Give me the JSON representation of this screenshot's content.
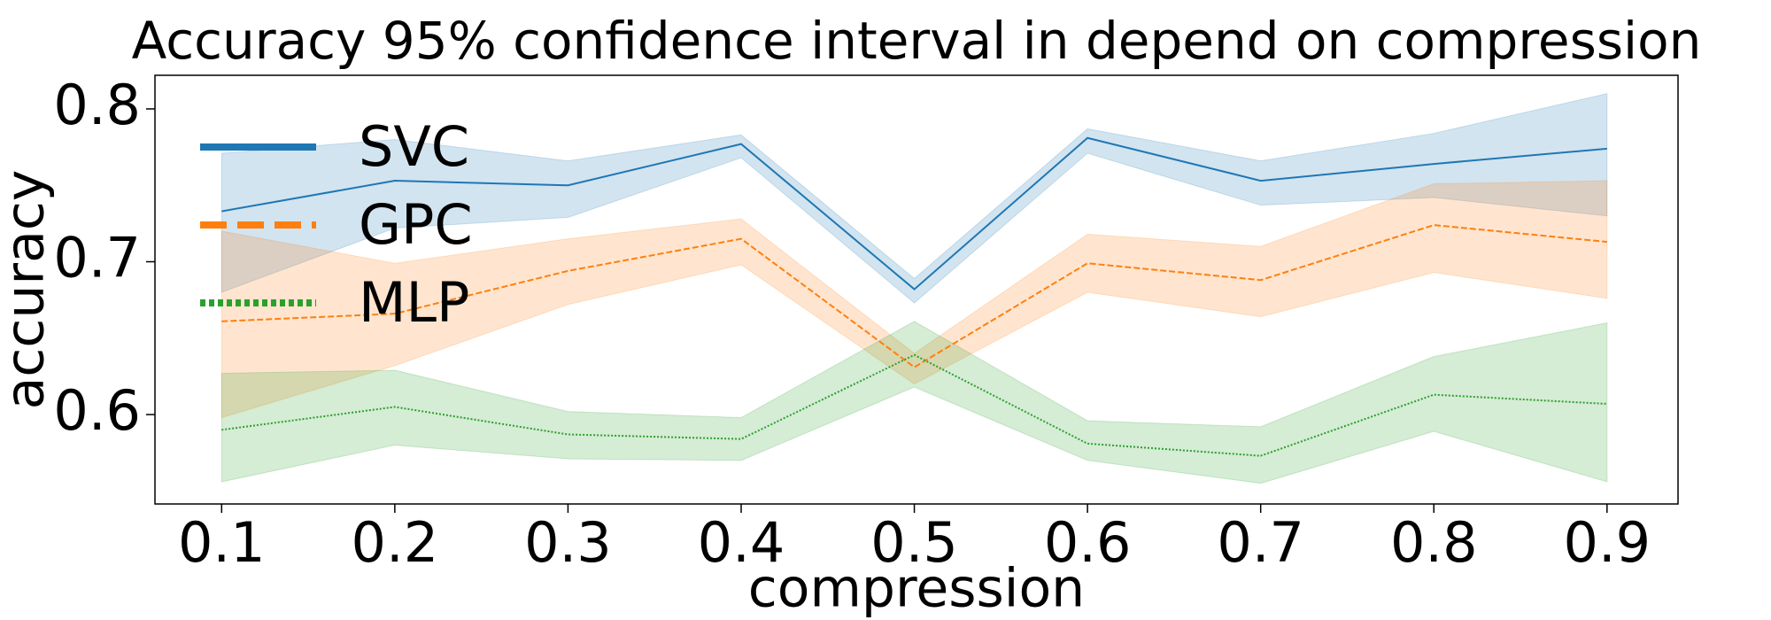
{
  "chart_data": {
    "type": "line",
    "title": "Accuracy 95% confidence interval in depend on compression",
    "xlabel": "compression",
    "ylabel": "accuracy",
    "x": [
      0.1,
      0.2,
      0.3,
      0.4,
      0.5,
      0.6,
      0.7,
      0.8,
      0.9
    ],
    "xlim": [
      0.0615,
      0.941
    ],
    "xticks": [
      0.1,
      0.2,
      0.3,
      0.4,
      0.5,
      0.6,
      0.7,
      0.8,
      0.9
    ],
    "ylim": [
      0.5415,
      0.822
    ],
    "yticks": [
      0.6,
      0.7,
      0.8
    ],
    "legend": "upper left",
    "series": [
      {
        "name": "SVC",
        "color": "#1f77b4",
        "dash": "solid",
        "values": [
          0.733,
          0.753,
          0.75,
          0.777,
          0.682,
          0.781,
          0.753,
          0.764,
          0.774
        ],
        "upper": [
          0.771,
          0.78,
          0.766,
          0.783,
          0.689,
          0.787,
          0.766,
          0.784,
          0.81
        ],
        "lower": [
          0.68,
          0.722,
          0.729,
          0.768,
          0.673,
          0.771,
          0.737,
          0.742,
          0.73
        ]
      },
      {
        "name": "GPC",
        "color": "#ff7f0e",
        "dash": "dashed",
        "values": [
          0.661,
          0.666,
          0.694,
          0.715,
          0.631,
          0.699,
          0.688,
          0.724,
          0.713
        ],
        "upper": [
          0.72,
          0.699,
          0.715,
          0.728,
          0.64,
          0.718,
          0.71,
          0.751,
          0.753
        ],
        "lower": [
          0.598,
          0.632,
          0.672,
          0.698,
          0.62,
          0.68,
          0.664,
          0.693,
          0.676
        ]
      },
      {
        "name": "MLP",
        "color": "#2ca02c",
        "dash": "dotted",
        "values": [
          0.59,
          0.605,
          0.587,
          0.584,
          0.639,
          0.581,
          0.573,
          0.613,
          0.607
        ],
        "upper": [
          0.627,
          0.629,
          0.602,
          0.598,
          0.661,
          0.596,
          0.592,
          0.638,
          0.66
        ],
        "lower": [
          0.556,
          0.58,
          0.571,
          0.57,
          0.618,
          0.57,
          0.555,
          0.589,
          0.556
        ]
      }
    ]
  }
}
